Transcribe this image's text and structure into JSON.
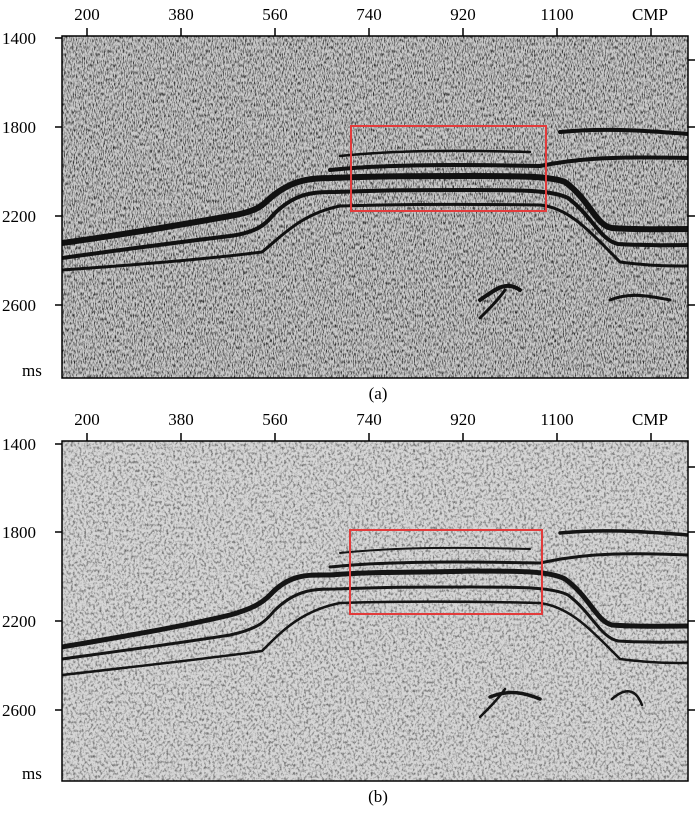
{
  "panels": [
    {
      "id": "a",
      "caption": "(a)",
      "x_ticks": [
        "200",
        "380",
        "560",
        "740",
        "920",
        "1100"
      ],
      "x_unit": "CMP",
      "y_ticks": [
        "1400",
        "1800",
        "2200",
        "2600"
      ],
      "y_unit": "ms"
    },
    {
      "id": "b",
      "caption": "(b)",
      "x_ticks": [
        "200",
        "380",
        "560",
        "740",
        "920",
        "1100"
      ],
      "x_unit": "CMP",
      "y_ticks": [
        "1400",
        "1800",
        "2200",
        "2600"
      ],
      "y_unit": "ms"
    }
  ],
  "colors": {
    "highlight_box": "#e23b3b",
    "trace": "#111111"
  }
}
